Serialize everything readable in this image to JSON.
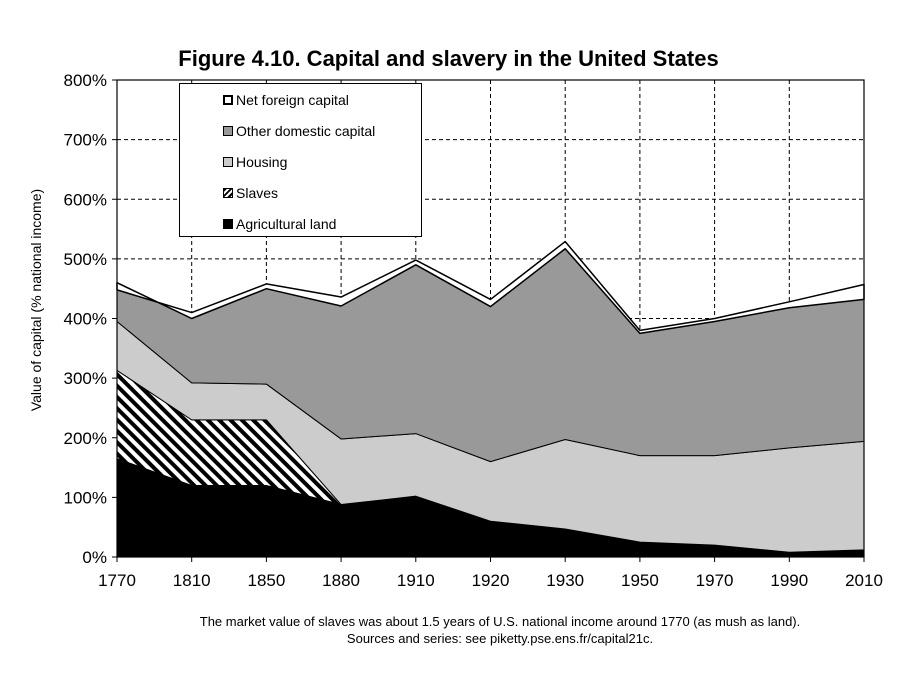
{
  "chart_data": {
    "type": "area",
    "title": "Figure 4.10. Capital and slavery in the United States",
    "xlabel": "",
    "ylabel": "Value of capital (% national income)",
    "x": [
      1770,
      1810,
      1850,
      1880,
      1910,
      1920,
      1930,
      1950,
      1970,
      1990,
      2010
    ],
    "ylim": [
      0,
      800
    ],
    "yticks": [
      "0%",
      "100%",
      "200%",
      "300%",
      "400%",
      "500%",
      "600%",
      "700%",
      "800%"
    ],
    "grid": true,
    "legend_position": "top-left",
    "stacked": true,
    "series": [
      {
        "name": "Agricultural land",
        "color": "#000000",
        "pattern": "solid",
        "values": [
          165,
          120,
          120,
          88,
          102,
          60,
          47,
          25,
          20,
          8,
          12
        ]
      },
      {
        "name": "Slaves",
        "color": "#000000",
        "pattern": "diagonal-hatch",
        "values": [
          148,
          110,
          110,
          0,
          0,
          0,
          0,
          0,
          0,
          0,
          0
        ]
      },
      {
        "name": "Housing",
        "color": "#cccccc",
        "pattern": "solid",
        "values": [
          82,
          62,
          60,
          110,
          105,
          100,
          150,
          145,
          150,
          175,
          182
        ]
      },
      {
        "name": "Other domestic capital",
        "color": "#999999",
        "pattern": "solid",
        "values": [
          65,
          108,
          160,
          223,
          283,
          260,
          320,
          205,
          225,
          235,
          238
        ]
      },
      {
        "name": "Net foreign capital",
        "color": "#ffffff",
        "pattern": "solid-outline",
        "values": [
          -12,
          10,
          8,
          15,
          8,
          12,
          12,
          5,
          5,
          10,
          25
        ]
      }
    ],
    "legend_order": [
      "Net foreign capital",
      "Other domestic capital",
      "Housing",
      "Slaves",
      "Agricultural land"
    ]
  },
  "notes": {
    "line1": "The market value of slaves was about 1.5 years of U.S. national income around 1770 (as mush as land).",
    "line2": "Sources and series: see piketty.pse.ens.fr/capital21c."
  }
}
